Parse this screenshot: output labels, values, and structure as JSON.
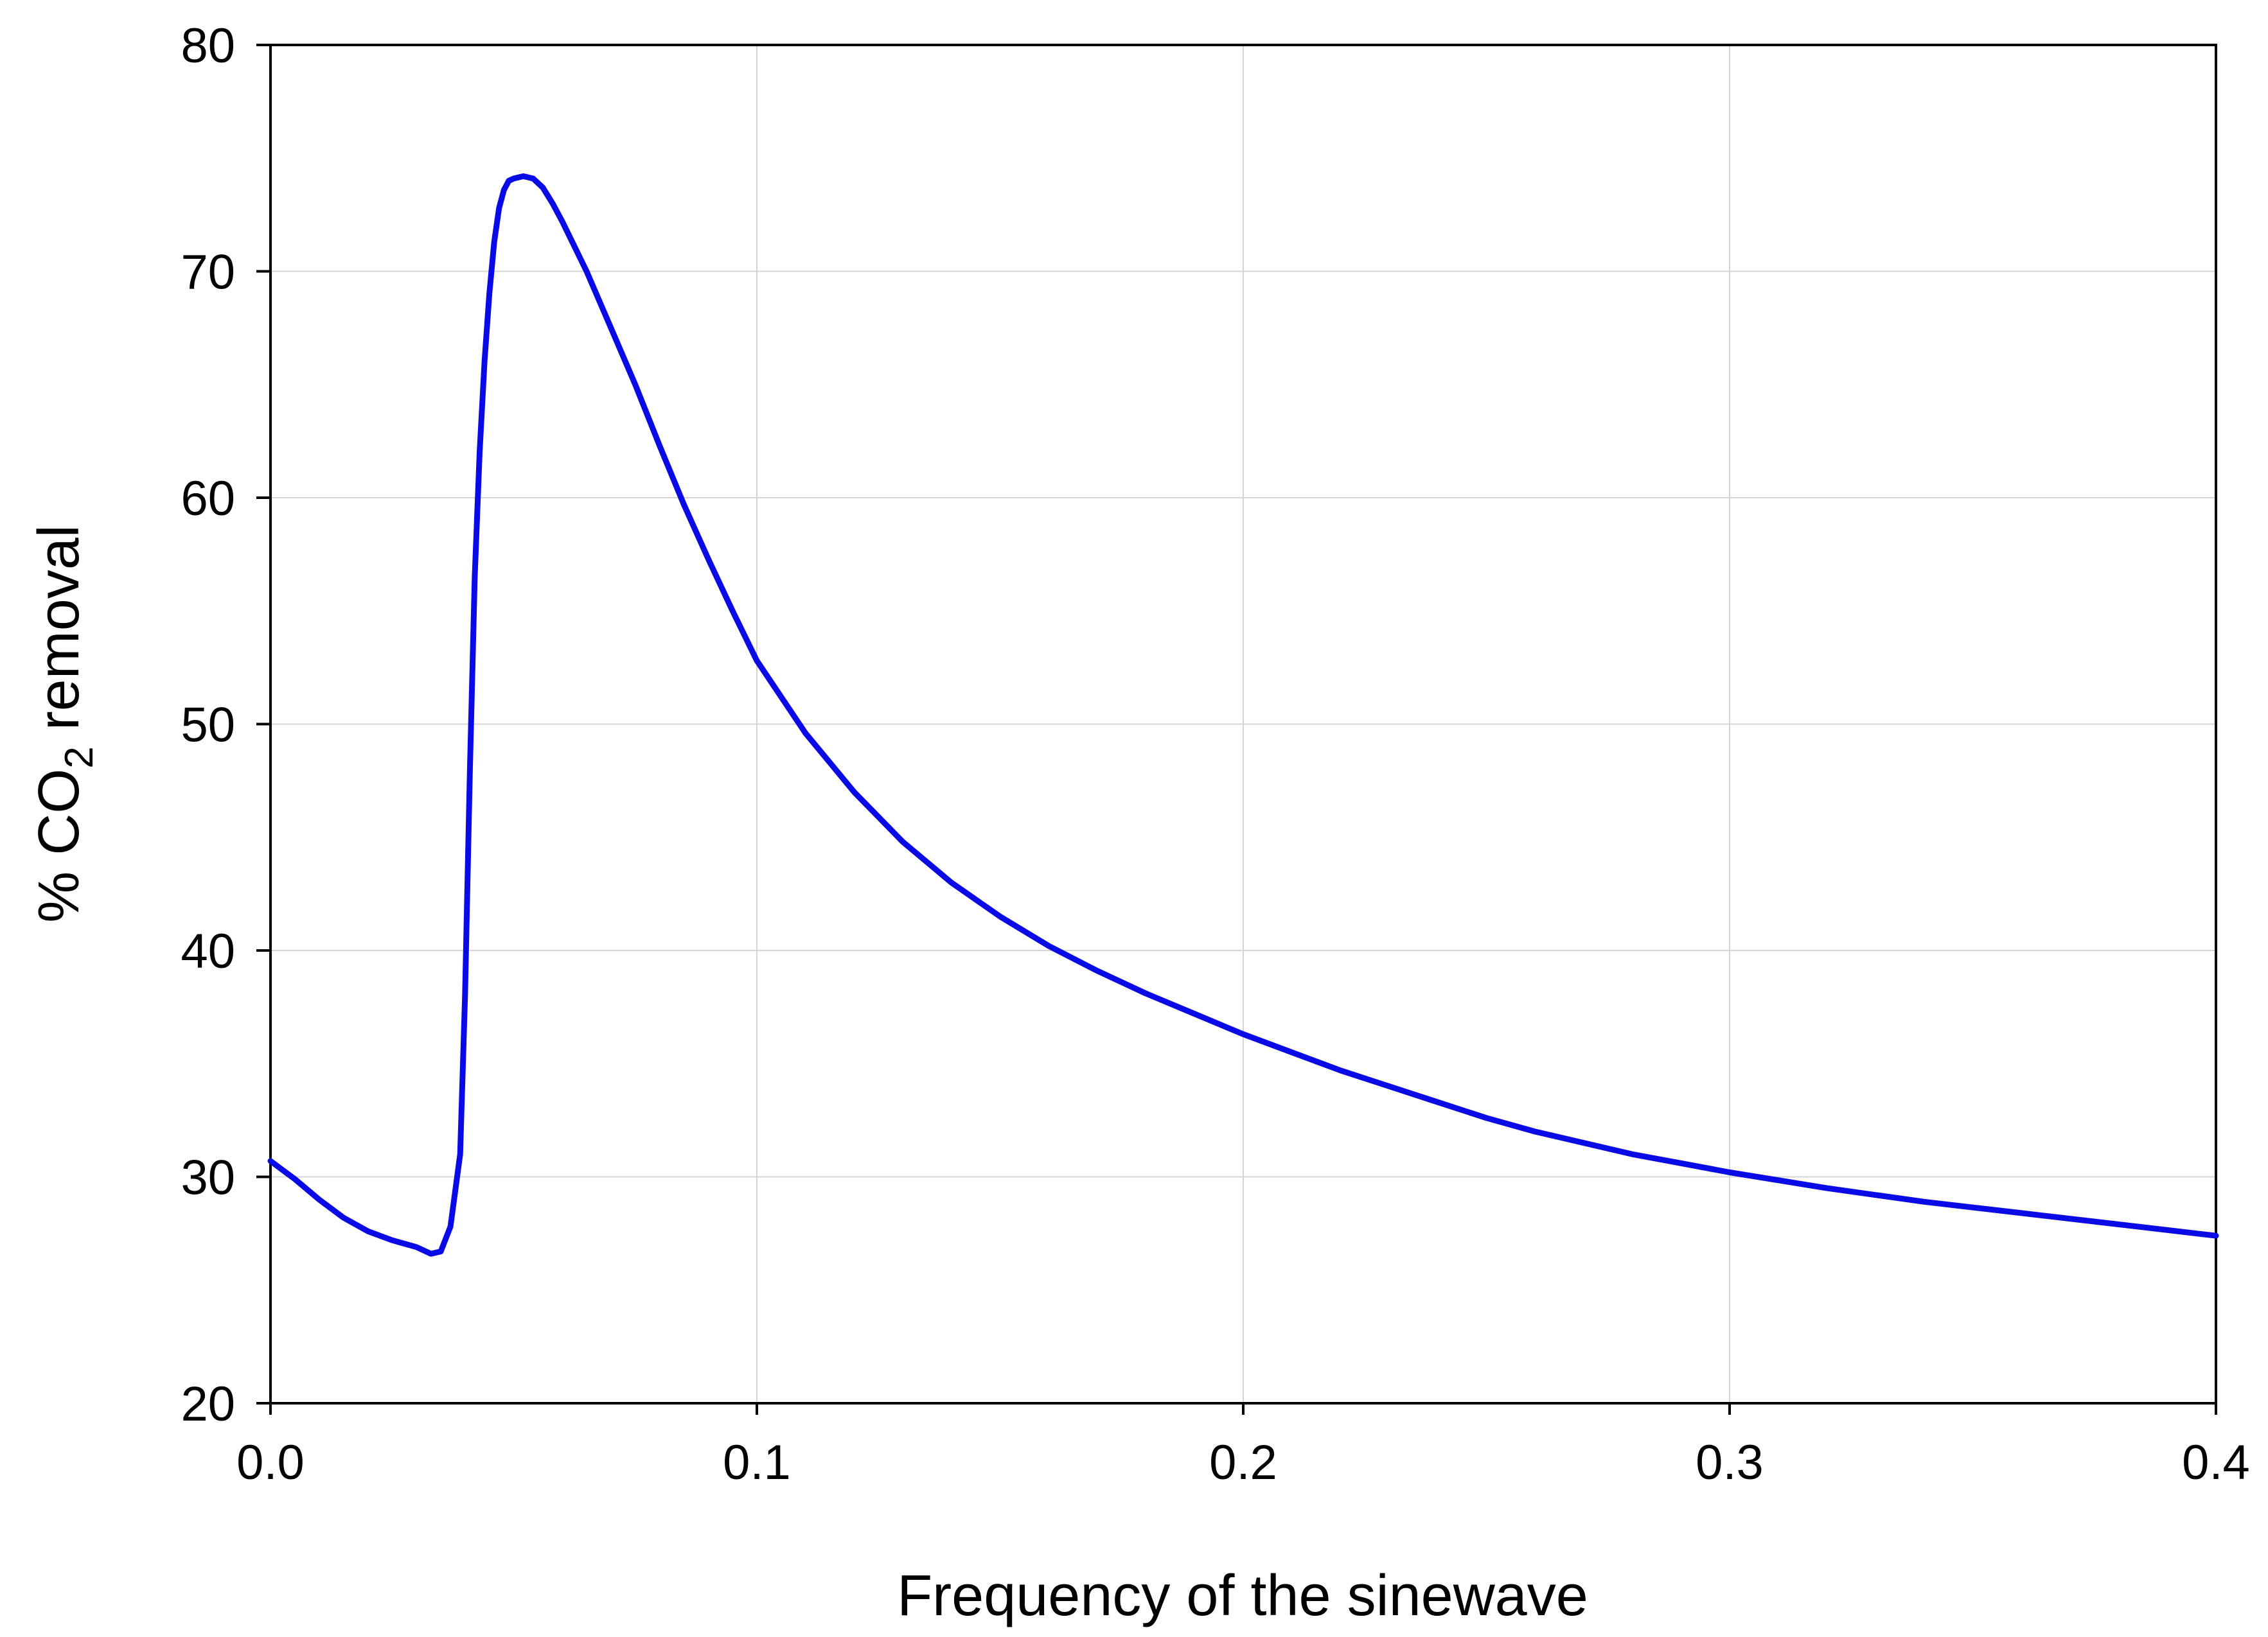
{
  "chart_data": {
    "type": "line",
    "title": "",
    "xlabel": "Frequency of the sinewave",
    "ylabel": {
      "prefix": "% CO",
      "subscript": "2",
      "suffix": " removal"
    },
    "xlim": [
      0.0,
      0.4
    ],
    "ylim": [
      20,
      80
    ],
    "x_ticks": [
      0.0,
      0.1,
      0.2,
      0.3,
      0.4
    ],
    "x_tick_labels": [
      "0.0",
      "0.1",
      "0.2",
      "0.3",
      "0.4"
    ],
    "y_ticks": [
      20,
      30,
      40,
      50,
      60,
      70,
      80
    ],
    "y_tick_labels": [
      "20",
      "30",
      "40",
      "50",
      "60",
      "70",
      "80"
    ],
    "grid": true,
    "series": [
      {
        "name": "% CO2 removal",
        "color": "#0a0ae6",
        "x": [
          0.0,
          0.005,
          0.01,
          0.015,
          0.02,
          0.025,
          0.03,
          0.033,
          0.035,
          0.037,
          0.039,
          0.04,
          0.041,
          0.042,
          0.043,
          0.044,
          0.045,
          0.046,
          0.047,
          0.048,
          0.049,
          0.05,
          0.052,
          0.054,
          0.056,
          0.058,
          0.06,
          0.065,
          0.07,
          0.075,
          0.08,
          0.085,
          0.09,
          0.095,
          0.1,
          0.11,
          0.12,
          0.13,
          0.14,
          0.15,
          0.16,
          0.17,
          0.18,
          0.19,
          0.2,
          0.21,
          0.22,
          0.23,
          0.24,
          0.25,
          0.26,
          0.27,
          0.28,
          0.29,
          0.3,
          0.32,
          0.34,
          0.36,
          0.38,
          0.4
        ],
        "y": [
          30.7,
          29.9,
          29.0,
          28.2,
          27.6,
          27.2,
          26.9,
          26.6,
          26.7,
          27.8,
          31.0,
          38.0,
          48.0,
          56.5,
          62.0,
          66.0,
          69.0,
          71.3,
          72.8,
          73.6,
          74.0,
          74.1,
          74.2,
          74.1,
          73.7,
          73.0,
          72.2,
          70.0,
          67.5,
          65.0,
          62.3,
          59.7,
          57.3,
          55.0,
          52.8,
          49.6,
          47.0,
          44.8,
          43.0,
          41.5,
          40.2,
          39.1,
          38.1,
          37.2,
          36.3,
          35.5,
          34.7,
          34.0,
          33.3,
          32.6,
          32.0,
          31.5,
          31.0,
          30.6,
          30.2,
          29.5,
          28.9,
          28.4,
          27.9,
          27.4
        ]
      }
    ]
  }
}
